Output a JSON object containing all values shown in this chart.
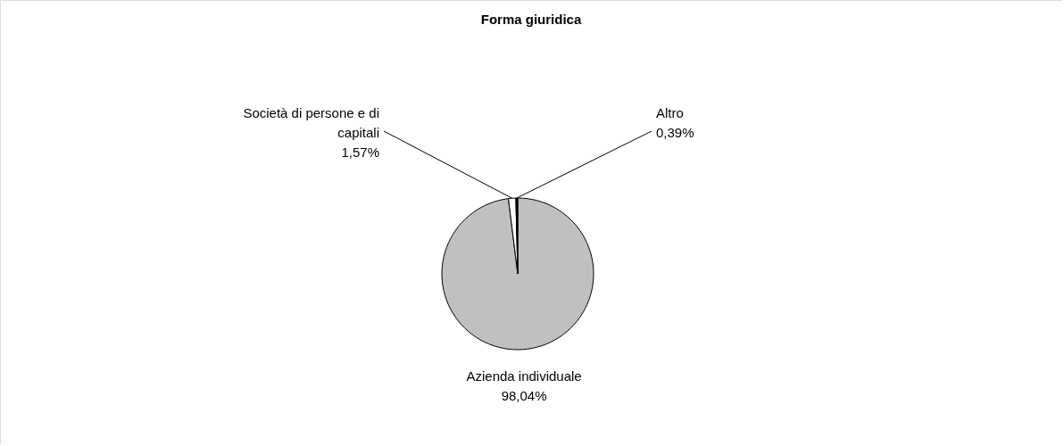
{
  "chart_data": {
    "type": "pie",
    "title": "Forma giuridica",
    "categories": [
      "Azienda individuale",
      "Società di persone e di capitali",
      "Altro"
    ],
    "values": [
      98.04,
      1.57,
      0.39
    ],
    "colors": [
      "#c0c0c0",
      "#ffffff",
      "#000000"
    ],
    "value_labels": [
      "98,04%",
      "1,57%",
      "0,39%"
    ],
    "legend": false
  }
}
